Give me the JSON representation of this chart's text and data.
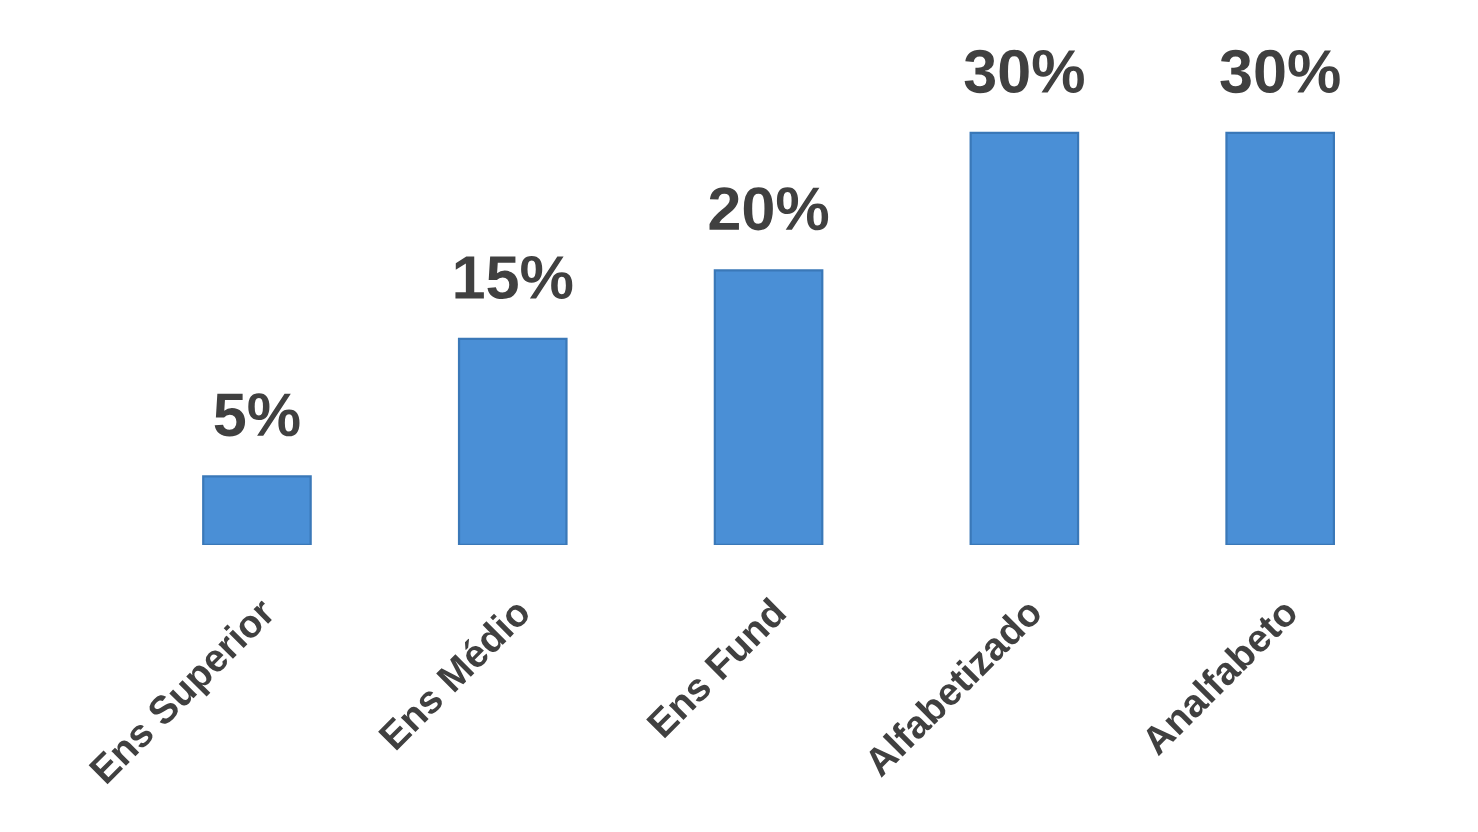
{
  "chart_data": {
    "type": "bar",
    "categories": [
      "Ens Superior",
      "Ens Médio",
      "Ens Fund",
      "Alfabetizado",
      "Analfabeto"
    ],
    "values": [
      5,
      15,
      20,
      30,
      30
    ],
    "color": "#4a8fd6",
    "value_labels": [
      "5%",
      "15%",
      "20%",
      "30%",
      "30%"
    ],
    "grid": false,
    "legend": false
  }
}
